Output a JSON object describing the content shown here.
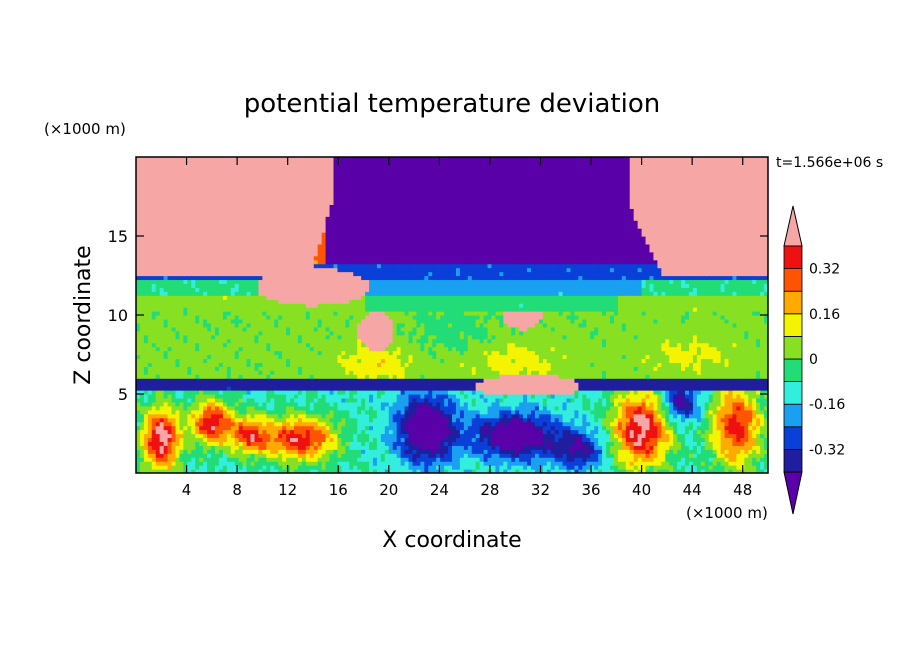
{
  "chart_data": {
    "type": "heatmap",
    "title": "potential temperature deviation",
    "xlabel": "X coordinate",
    "ylabel": "Z coordinate",
    "x_unit": "(×1000 m)",
    "y_unit": "(×1000 m)",
    "time_label": "t=1.566e+06 s",
    "xlim": [
      0,
      50
    ],
    "ylim": [
      0,
      20
    ],
    "x_ticks": [
      "4",
      "8",
      "12",
      "16",
      "20",
      "24",
      "28",
      "32",
      "36",
      "40",
      "44",
      "48"
    ],
    "y_ticks": [
      "5",
      "10",
      "15"
    ],
    "colorbar": {
      "labels": [
        "0.32",
        "0.16",
        "0",
        "-0.16",
        "-0.32"
      ],
      "levels": [
        -0.4,
        -0.32,
        -0.24,
        -0.16,
        -0.08,
        0,
        0.08,
        0.16,
        0.24,
        0.32,
        0.4
      ],
      "colors": [
        "#5a00a8",
        "#1f1f9e",
        "#0a3fd8",
        "#1aa0f0",
        "#33eedd",
        "#22dd77",
        "#88e022",
        "#f4f400",
        "#ffaa00",
        "#ff5500",
        "#ee1111",
        "#f7a6a6"
      ],
      "extend": "both"
    },
    "layers": [
      {
        "z_range": [
          0,
          5.5
        ],
        "dominant": "mixed warm/cold cells"
      },
      {
        "z_range": [
          5.5,
          6
        ],
        "dominant": -0.32
      },
      {
        "z_range": [
          6,
          12
        ],
        "dominant": 0
      },
      {
        "z_range": [
          12,
          13
        ],
        "dominant": -0.24
      },
      {
        "z_range": [
          13,
          20
        ],
        "dominant": "mixed (>0.4 left/right, < -0.4 center)"
      }
    ]
  }
}
